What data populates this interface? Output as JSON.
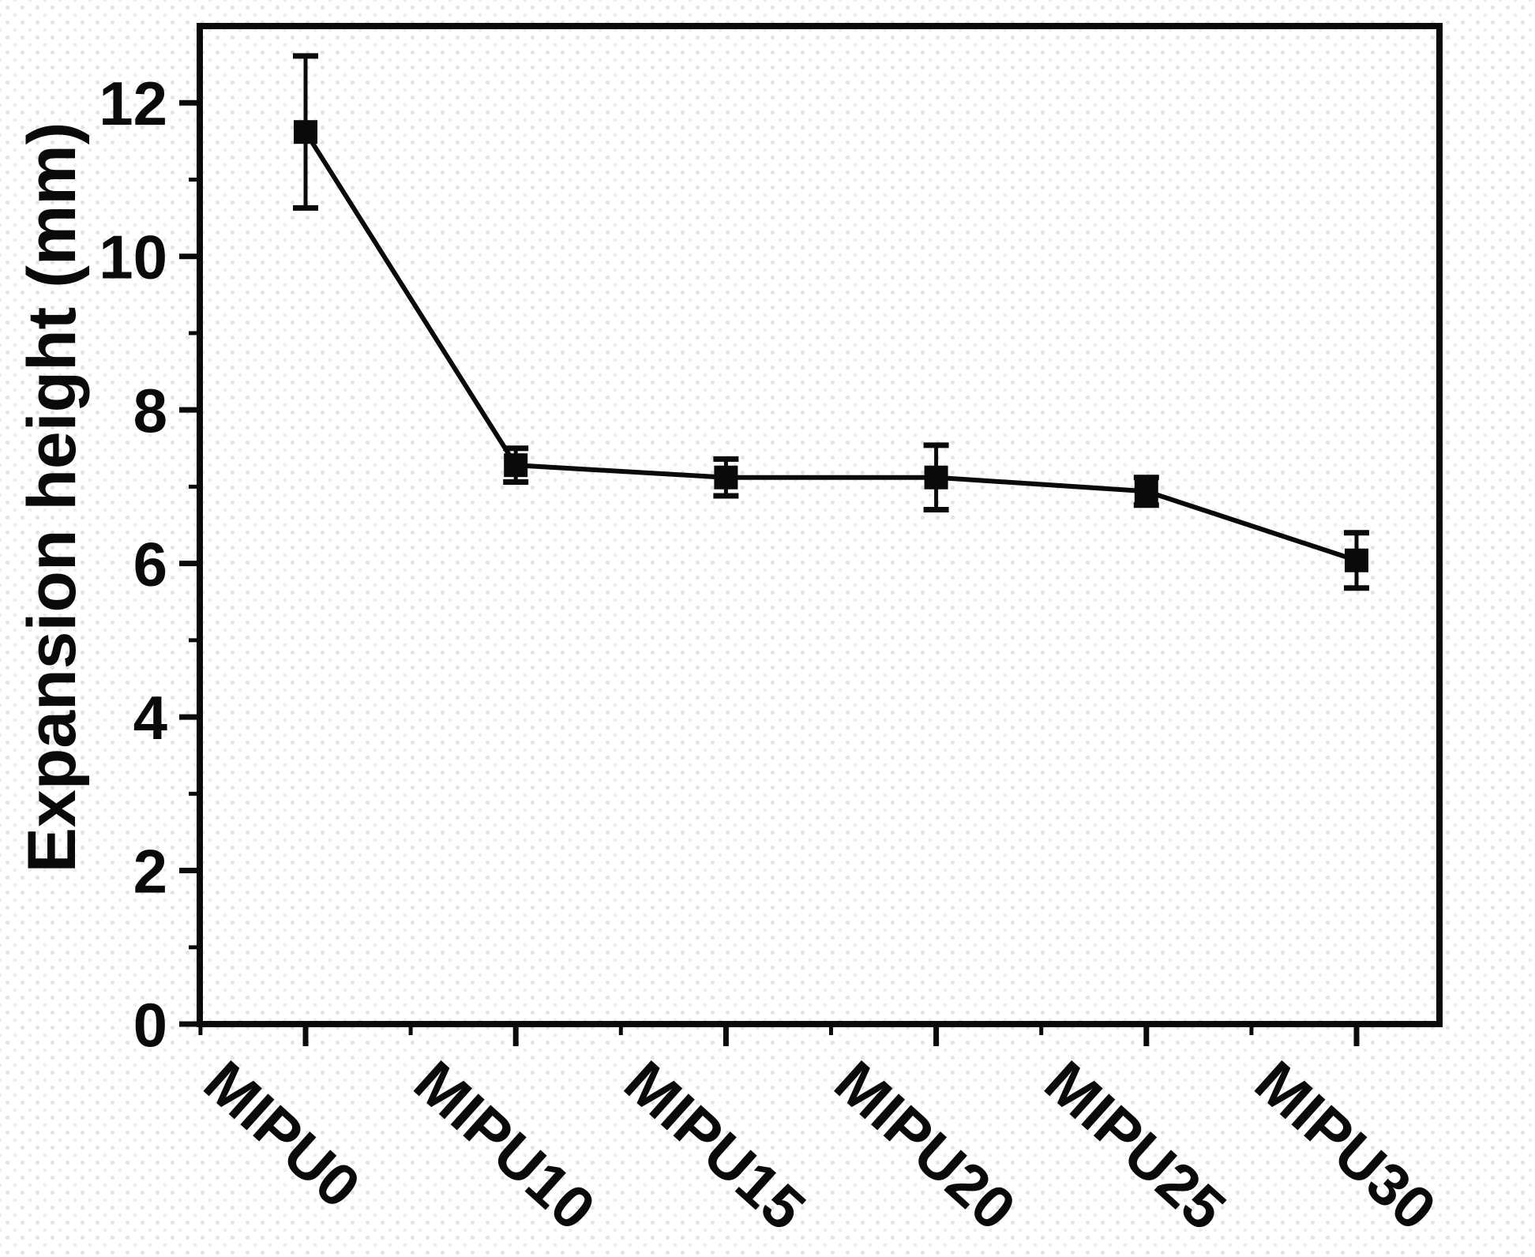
{
  "figure": {
    "background_color": "#ffffff",
    "dot_pattern_color": "#e4e4e8",
    "axis_color": "#0a0a0a"
  },
  "chart_data": {
    "type": "line",
    "categories": [
      "MIPU0",
      "MIPU10",
      "MIPU15",
      "MIPU20",
      "MIPU25",
      "MIPU30"
    ],
    "values": [
      11.62,
      7.28,
      7.12,
      7.12,
      6.94,
      6.04
    ],
    "errors": [
      0.99,
      0.22,
      0.24,
      0.42,
      0.18,
      0.36
    ],
    "title": "",
    "xlabel": "",
    "ylabel": "Expansion height (mm)",
    "ylim": [
      0,
      13
    ],
    "y_ticks": [
      0,
      2,
      4,
      6,
      8,
      10,
      12
    ],
    "y_minor_ticks": [
      1,
      3,
      5,
      7,
      9,
      11
    ],
    "x_tick_label_rotation_deg": 42,
    "marker": "square",
    "line_color": "#0a0a0a",
    "marker_color": "#0a0a0a",
    "grid": false,
    "legend_position": "none"
  }
}
